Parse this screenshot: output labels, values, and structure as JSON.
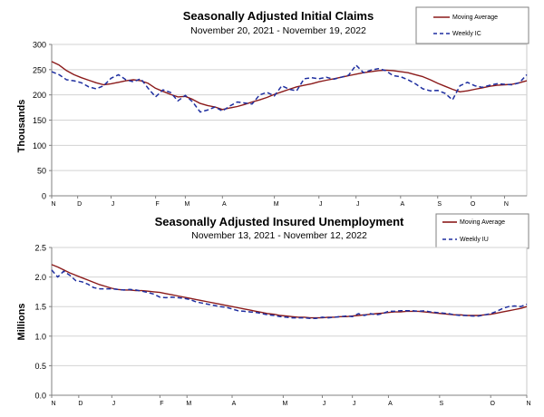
{
  "colors": {
    "moving_average": "#8b1a1a",
    "weekly": "#1f2fa0",
    "grid": "#d3d3d3",
    "axis": "#808080"
  },
  "chart_data": [
    {
      "type": "line",
      "title": "Seasonally Adjusted Initial Claims",
      "subtitle": "November 20, 2021 - November 19, 2022",
      "ylabel": "Thousands",
      "ylim": [
        0,
        300
      ],
      "yticks": [
        "0",
        "50",
        "100",
        "150",
        "200",
        "250",
        "300"
      ],
      "ytick_values": [
        0,
        50,
        100,
        150,
        200,
        250,
        300
      ],
      "month_labels": [
        "N",
        "D",
        "J",
        "F",
        "M",
        "A",
        "M",
        "J",
        "J",
        "A",
        "S",
        "O",
        "N"
      ],
      "month_weeks": [
        0,
        3.5,
        8,
        14,
        18,
        23,
        30,
        36,
        41,
        47,
        52,
        56.5,
        61
      ],
      "legend_position": "top-right",
      "series": [
        {
          "name": "Moving Average",
          "style": "solid",
          "values": [
            266,
            259,
            248,
            240,
            234,
            229,
            224,
            220,
            222,
            225,
            228,
            230,
            228,
            223,
            213,
            207,
            201,
            196,
            197,
            191,
            183,
            179,
            176,
            171,
            174,
            177,
            181,
            186,
            190,
            195,
            201,
            206,
            211,
            216,
            219,
            222,
            226,
            229,
            232,
            235,
            238,
            241,
            244,
            246,
            248,
            249,
            248,
            246,
            244,
            240,
            236,
            230,
            223,
            217,
            211,
            206,
            208,
            211,
            214,
            217,
            219,
            220,
            221,
            224,
            228
          ]
        },
        {
          "name": "Weekly IC",
          "style": "dashed",
          "values": [
            246,
            240,
            230,
            228,
            224,
            216,
            212,
            218,
            233,
            240,
            230,
            226,
            232,
            213,
            196,
            210,
            205,
            188,
            199,
            186,
            166,
            170,
            176,
            168,
            178,
            186,
            184,
            182,
            200,
            205,
            198,
            218,
            211,
            208,
            232,
            234,
            232,
            235,
            231,
            235,
            239,
            259,
            244,
            249,
            252,
            248,
            238,
            236,
            230,
            222,
            212,
            208,
            209,
            203,
            190,
            218,
            225,
            218,
            215,
            219,
            222,
            221,
            220,
            224,
            240
          ]
        }
      ]
    },
    {
      "type": "line",
      "title": "Seasonally Adjusted Insured Unemployment",
      "subtitle": "November 13, 2021 - November 12, 2022",
      "ylabel": "Millions",
      "ylim": [
        0,
        2.5
      ],
      "yticks": [
        "0.0",
        "0.5",
        "1.0",
        "1.5",
        "2.0",
        "2.5"
      ],
      "ytick_values": [
        0,
        0.5,
        1.0,
        1.5,
        2.0,
        2.5
      ],
      "month_labels": [
        "N",
        "D",
        "J",
        "F",
        "M",
        "A",
        "M",
        "J",
        "J",
        "A",
        "S",
        "O",
        "N"
      ],
      "month_weeks": [
        0,
        4.5,
        10,
        18,
        22.5,
        30,
        38.5,
        45,
        50,
        56,
        64.5,
        73,
        79
      ],
      "legend_position": "top-right",
      "series": [
        {
          "name": "Moving Average",
          "style": "solid",
          "values": [
            2.21,
            2.17,
            2.12,
            2.07,
            2.03,
            1.99,
            1.95,
            1.91,
            1.87,
            1.84,
            1.81,
            1.79,
            1.78,
            1.78,
            1.77,
            1.77,
            1.76,
            1.75,
            1.74,
            1.72,
            1.7,
            1.68,
            1.66,
            1.64,
            1.62,
            1.6,
            1.58,
            1.56,
            1.54,
            1.52,
            1.5,
            1.48,
            1.46,
            1.44,
            1.42,
            1.4,
            1.38,
            1.37,
            1.35,
            1.34,
            1.33,
            1.32,
            1.32,
            1.31,
            1.31,
            1.31,
            1.32,
            1.32,
            1.33,
            1.33,
            1.34,
            1.35,
            1.36,
            1.37,
            1.38,
            1.39,
            1.4,
            1.41,
            1.41,
            1.42,
            1.42,
            1.42,
            1.41,
            1.4,
            1.39,
            1.38,
            1.37,
            1.36,
            1.36,
            1.35,
            1.35,
            1.35,
            1.36,
            1.37,
            1.39,
            1.41,
            1.43,
            1.45,
            1.47,
            1.5
          ]
        },
        {
          "name": "Weekly IU",
          "style": "dashed",
          "values": [
            2.12,
            2.0,
            2.1,
            2.03,
            1.94,
            1.92,
            1.88,
            1.82,
            1.8,
            1.8,
            1.8,
            1.79,
            1.78,
            1.79,
            1.78,
            1.76,
            1.74,
            1.71,
            1.66,
            1.65,
            1.66,
            1.65,
            1.64,
            1.62,
            1.58,
            1.56,
            1.54,
            1.52,
            1.5,
            1.49,
            1.46,
            1.43,
            1.42,
            1.41,
            1.4,
            1.38,
            1.36,
            1.35,
            1.33,
            1.32,
            1.31,
            1.31,
            1.31,
            1.3,
            1.3,
            1.32,
            1.31,
            1.32,
            1.33,
            1.34,
            1.33,
            1.38,
            1.35,
            1.38,
            1.36,
            1.38,
            1.42,
            1.42,
            1.43,
            1.43,
            1.43,
            1.42,
            1.43,
            1.41,
            1.4,
            1.39,
            1.38,
            1.36,
            1.35,
            1.35,
            1.34,
            1.34,
            1.36,
            1.38,
            1.42,
            1.47,
            1.5,
            1.51,
            1.5,
            1.54
          ]
        }
      ]
    }
  ]
}
